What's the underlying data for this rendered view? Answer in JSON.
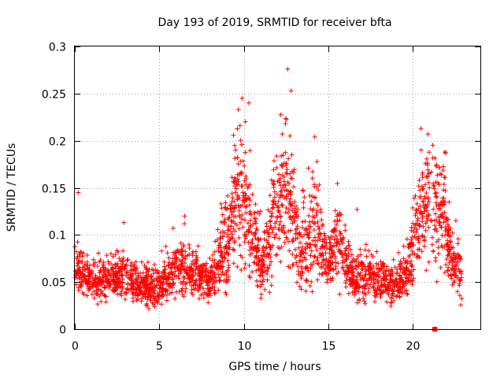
{
  "chart_data": {
    "type": "scatter",
    "title": "Day 193 of 2019, SRMTID for receiver bfta",
    "xlabel": "GPS time / hours",
    "ylabel": "SRMTID / TECUs",
    "xlim": [
      0,
      24
    ],
    "ylim": [
      0,
      0.3
    ],
    "x_ticks": [
      0,
      5,
      10,
      15,
      20
    ],
    "x_tick_labels": [
      "0",
      "5",
      "10",
      "15",
      "20"
    ],
    "y_ticks": [
      0,
      0.05,
      0.1,
      0.15,
      0.2,
      0.25,
      0.3
    ],
    "y_tick_labels": [
      "0",
      "0.05",
      "0.1",
      "0.15",
      "0.2",
      "0.25",
      "0.3"
    ],
    "grid": true,
    "marker": "+",
    "color": "#ff0000",
    "envelope": [
      {
        "x": 0.0,
        "y": 0.06,
        "spread": 0.016
      },
      {
        "x": 0.5,
        "y": 0.062,
        "spread": 0.016
      },
      {
        "x": 1.0,
        "y": 0.05,
        "spread": 0.014
      },
      {
        "x": 2.0,
        "y": 0.055,
        "spread": 0.014
      },
      {
        "x": 3.0,
        "y": 0.058,
        "spread": 0.016
      },
      {
        "x": 4.0,
        "y": 0.045,
        "spread": 0.014
      },
      {
        "x": 5.0,
        "y": 0.045,
        "spread": 0.014
      },
      {
        "x": 6.0,
        "y": 0.065,
        "spread": 0.017
      },
      {
        "x": 7.0,
        "y": 0.06,
        "spread": 0.017
      },
      {
        "x": 8.0,
        "y": 0.05,
        "spread": 0.016
      },
      {
        "x": 9.0,
        "y": 0.09,
        "spread": 0.03
      },
      {
        "x": 9.7,
        "y": 0.15,
        "spread": 0.045
      },
      {
        "x": 10.3,
        "y": 0.12,
        "spread": 0.045
      },
      {
        "x": 11.0,
        "y": 0.06,
        "spread": 0.02
      },
      {
        "x": 11.7,
        "y": 0.11,
        "spread": 0.04
      },
      {
        "x": 12.5,
        "y": 0.15,
        "spread": 0.055
      },
      {
        "x": 13.3,
        "y": 0.08,
        "spread": 0.03
      },
      {
        "x": 14.2,
        "y": 0.11,
        "spread": 0.04
      },
      {
        "x": 15.0,
        "y": 0.07,
        "spread": 0.02
      },
      {
        "x": 15.6,
        "y": 0.1,
        "spread": 0.03
      },
      {
        "x": 16.5,
        "y": 0.05,
        "spread": 0.016
      },
      {
        "x": 17.5,
        "y": 0.06,
        "spread": 0.017
      },
      {
        "x": 18.5,
        "y": 0.045,
        "spread": 0.014
      },
      {
        "x": 19.6,
        "y": 0.055,
        "spread": 0.016
      },
      {
        "x": 20.2,
        "y": 0.1,
        "spread": 0.035
      },
      {
        "x": 20.8,
        "y": 0.14,
        "spread": 0.04
      },
      {
        "x": 21.3,
        "y": 0.12,
        "spread": 0.04
      },
      {
        "x": 21.8,
        "y": 0.13,
        "spread": 0.045
      },
      {
        "x": 22.3,
        "y": 0.07,
        "spread": 0.02
      },
      {
        "x": 22.9,
        "y": 0.06,
        "spread": 0.018
      }
    ],
    "notable_points": [
      {
        "x": 0.2,
        "y": 0.145
      },
      {
        "x": 9.9,
        "y": 0.245
      },
      {
        "x": 10.3,
        "y": 0.24
      },
      {
        "x": 12.6,
        "y": 0.276
      },
      {
        "x": 12.8,
        "y": 0.253
      },
      {
        "x": 14.2,
        "y": 0.204
      },
      {
        "x": 20.5,
        "y": 0.19
      },
      {
        "x": 20.9,
        "y": 0.207
      },
      {
        "x": 21.9,
        "y": 0.188
      },
      {
        "x": 2.9,
        "y": 0.113
      },
      {
        "x": 6.5,
        "y": 0.12
      },
      {
        "x": 16.7,
        "y": 0.127
      }
    ],
    "zero_markers": [
      {
        "x": 21.3,
        "y": 0.0
      }
    ]
  }
}
